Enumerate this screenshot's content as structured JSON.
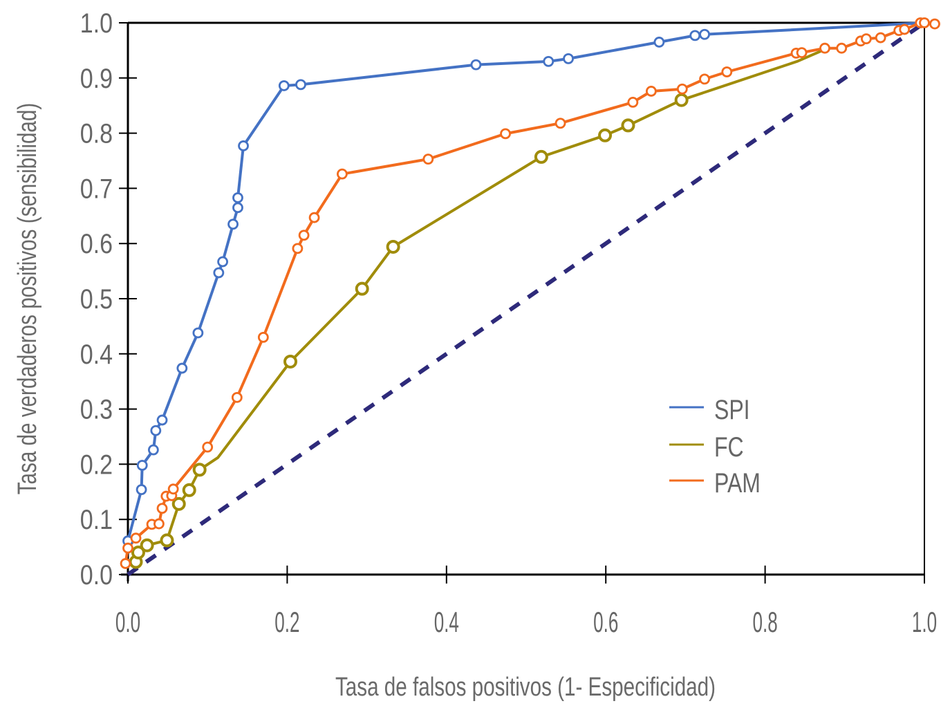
{
  "chart_data": {
    "type": "line",
    "title": "",
    "xlabel": "Tasa de falsos positivos (1- Especificidad)",
    "ylabel": "Tasa de verdaderos positivos (sensibilidad)",
    "xlim": [
      0,
      1
    ],
    "ylim": [
      0,
      1
    ],
    "xticks": [
      "0.0",
      "0.2",
      "0.4",
      "0.6",
      "0.8",
      "1.0"
    ],
    "yticks": [
      "0.0",
      "0.1",
      "0.2",
      "0.3",
      "0.4",
      "0.5",
      "0.6",
      "0.7",
      "0.8",
      "0.9",
      "1.0"
    ],
    "grid": false,
    "legend_position": "center-right",
    "series": [
      {
        "name": "SPI",
        "color": "#4472C4",
        "points": [
          [
            0.0,
            0.061
          ],
          [
            0.017,
            0.154
          ],
          [
            0.018,
            0.198
          ],
          [
            0.032,
            0.226
          ],
          [
            0.035,
            0.261
          ],
          [
            0.043,
            0.28
          ],
          [
            0.068,
            0.374
          ],
          [
            0.088,
            0.438
          ],
          [
            0.114,
            0.547
          ],
          [
            0.119,
            0.567
          ],
          [
            0.132,
            0.635
          ],
          [
            0.138,
            0.665
          ],
          [
            0.138,
            0.683
          ],
          [
            0.145,
            0.777
          ],
          [
            0.196,
            0.886
          ],
          [
            0.217,
            0.888
          ],
          [
            0.437,
            0.924
          ],
          [
            0.528,
            0.93
          ],
          [
            0.553,
            0.935
          ],
          [
            0.667,
            0.965
          ],
          [
            0.712,
            0.977
          ],
          [
            0.724,
            0.979
          ]
        ],
        "end": [
          1.0,
          1.0
        ]
      },
      {
        "name": "FC",
        "color": "#A08C0A",
        "points": [
          [
            0.01,
            0.023
          ],
          [
            0.013,
            0.04
          ],
          [
            0.024,
            0.053
          ],
          [
            0.049,
            0.062
          ],
          [
            0.064,
            0.128
          ],
          [
            0.077,
            0.153
          ],
          [
            0.09,
            0.19
          ],
          [
            0.204,
            0.386
          ],
          [
            0.294,
            0.518
          ],
          [
            0.333,
            0.594
          ],
          [
            0.519,
            0.757
          ],
          [
            0.599,
            0.796
          ],
          [
            0.628,
            0.814
          ],
          [
            0.695,
            0.86
          ]
        ],
        "line_only": [
          [
            0.113,
            0.212
          ],
          [
            0.84,
            0.93
          ],
          [
            0.88,
            0.955
          ]
        ]
      },
      {
        "name": "PAM",
        "color": "#F26B1D",
        "points": [
          [
            -0.003,
            0.02
          ],
          [
            0.0,
            0.048
          ],
          [
            0.01,
            0.066
          ],
          [
            0.03,
            0.091
          ],
          [
            0.039,
            0.092
          ],
          [
            0.043,
            0.12
          ],
          [
            0.048,
            0.142
          ],
          [
            0.055,
            0.143
          ],
          [
            0.057,
            0.155
          ],
          [
            0.1,
            0.231
          ],
          [
            0.137,
            0.321
          ],
          [
            0.17,
            0.43
          ],
          [
            0.213,
            0.591
          ],
          [
            0.221,
            0.615
          ],
          [
            0.234,
            0.647
          ],
          [
            0.269,
            0.726
          ],
          [
            0.377,
            0.753
          ],
          [
            0.474,
            0.799
          ],
          [
            0.543,
            0.818
          ],
          [
            0.634,
            0.856
          ],
          [
            0.657,
            0.876
          ],
          [
            0.696,
            0.88
          ],
          [
            0.724,
            0.898
          ],
          [
            0.752,
            0.911
          ],
          [
            0.839,
            0.945
          ],
          [
            0.846,
            0.946
          ],
          [
            0.875,
            0.954
          ],
          [
            0.896,
            0.954
          ],
          [
            0.92,
            0.967
          ],
          [
            0.927,
            0.971
          ],
          [
            0.945,
            0.973
          ],
          [
            0.968,
            0.986
          ],
          [
            0.975,
            0.988
          ],
          [
            0.995,
            1.0
          ],
          [
            1.0,
            1.0
          ],
          [
            1.013,
            0.998
          ]
        ]
      },
      {
        "name": "Reference",
        "color": "#2E2A7A",
        "style": "dashed",
        "points": [
          [
            0.0,
            0.0
          ],
          [
            1.0,
            1.0
          ]
        ]
      }
    ]
  },
  "legend": {
    "items": [
      {
        "label": "SPI",
        "color": "#4472C4"
      },
      {
        "label": "FC",
        "color": "#A08C0A"
      },
      {
        "label": "PAM",
        "color": "#F26B1D"
      }
    ]
  }
}
